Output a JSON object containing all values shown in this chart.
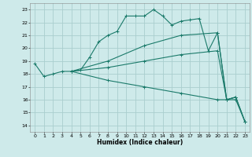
{
  "xlabel": "Humidex (Indice chaleur)",
  "xlim": [
    -0.5,
    23.5
  ],
  "ylim": [
    13.5,
    23.5
  ],
  "xticks": [
    0,
    1,
    2,
    3,
    4,
    5,
    6,
    7,
    8,
    9,
    10,
    11,
    12,
    13,
    14,
    15,
    16,
    17,
    18,
    19,
    20,
    21,
    22,
    23
  ],
  "yticks": [
    14,
    15,
    16,
    17,
    18,
    19,
    20,
    21,
    22,
    23
  ],
  "bg_color": "#ceeaea",
  "grid_color": "#aacece",
  "line_color": "#1a7a6a",
  "line1_x": [
    0,
    1,
    2,
    3,
    4,
    5,
    6,
    7,
    8,
    9,
    10,
    11,
    12,
    13,
    14,
    15,
    16,
    17,
    18,
    19,
    20,
    21,
    22
  ],
  "line1_y": [
    18.8,
    17.8,
    18.0,
    18.2,
    18.2,
    18.3,
    19.3,
    20.5,
    21.0,
    21.3,
    22.5,
    22.5,
    22.5,
    23.0,
    22.5,
    21.8,
    22.1,
    22.2,
    22.3,
    19.8,
    21.2,
    16.0,
    16.2
  ],
  "line2_x": [
    4,
    8,
    12,
    16,
    20,
    21,
    22,
    23
  ],
  "line2_y": [
    18.2,
    19.0,
    20.2,
    21.0,
    21.2,
    16.0,
    16.2,
    14.3
  ],
  "line3_x": [
    4,
    8,
    12,
    16,
    20,
    21,
    22,
    23
  ],
  "line3_y": [
    18.2,
    18.5,
    19.0,
    19.5,
    19.8,
    16.0,
    16.2,
    14.3
  ],
  "line4_x": [
    4,
    8,
    12,
    16,
    20,
    22,
    23
  ],
  "line4_y": [
    18.2,
    17.5,
    17.0,
    16.5,
    16.0,
    16.0,
    14.3
  ]
}
